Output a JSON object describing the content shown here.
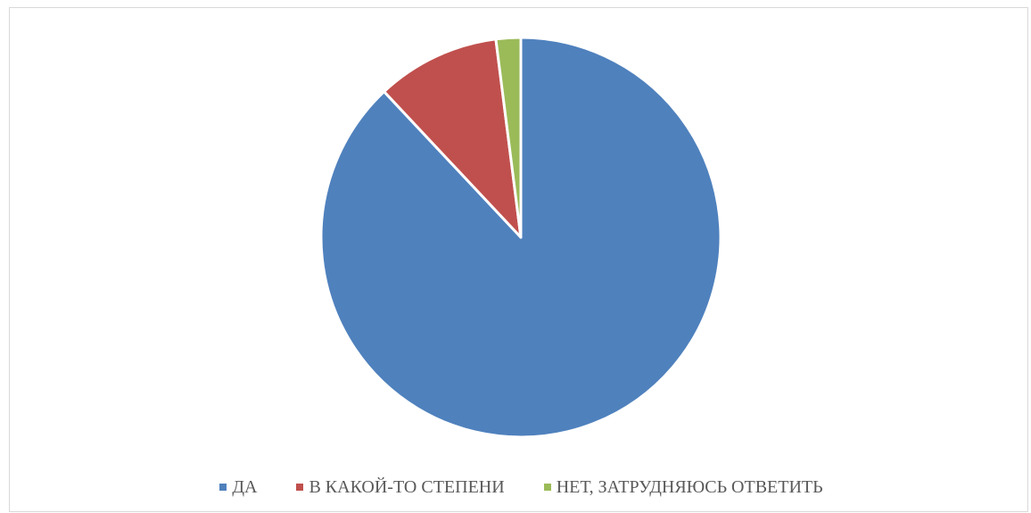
{
  "chart_data": {
    "type": "pie",
    "title": "",
    "categories": [
      "ДА",
      "В КАКОЙ-ТО СТЕПЕНИ",
      "НЕТ, ЗАТРУДНЯЮСЬ ОТВЕТИТЬ"
    ],
    "values": [
      88,
      10,
      2
    ],
    "colors": [
      "#4f81bd",
      "#c0504d",
      "#9bbb59"
    ],
    "start_angle_deg": 0,
    "direction": "clockwise",
    "legend_position": "bottom",
    "data_labels": false
  }
}
